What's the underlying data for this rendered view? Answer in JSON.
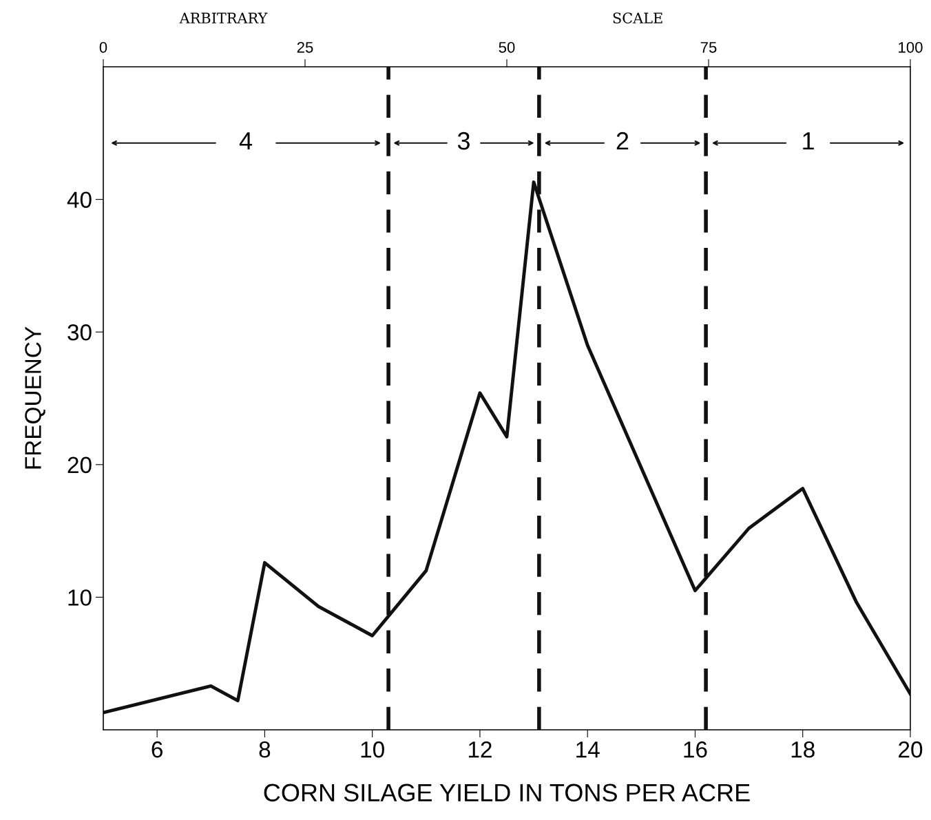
{
  "chart_data": {
    "type": "line",
    "xlabel": "CORN SILAGE YIELD IN TONS PER ACRE",
    "ylabel": "FREQUENCY",
    "x": [
      5,
      7,
      7.5,
      8,
      9,
      10,
      11,
      12,
      12.5,
      13,
      14,
      16,
      17,
      18,
      19,
      20
    ],
    "series": [
      {
        "color": "#111111",
        "values": [
          1.3,
          3.3,
          2.2,
          12.6,
          9.3,
          7.1,
          12.0,
          25.4,
          22.1,
          41.3,
          29,
          10.5,
          15.2,
          18.2,
          9.6,
          2.7
        ]
      }
    ],
    "xlim": [
      5,
      20
    ],
    "xticks": [
      6,
      8,
      10,
      12,
      14,
      16,
      18,
      20
    ],
    "ylim": [
      0,
      50
    ],
    "yticks": [
      10,
      20,
      30,
      40
    ],
    "x2lim": [
      0,
      100
    ],
    "x2ticks": [
      0,
      25,
      50,
      75,
      100
    ],
    "ref_lines": [
      {
        "axis": "x",
        "value": 10.3,
        "color": "#111111",
        "line_style": "dashed"
      },
      {
        "axis": "x",
        "value": 13.1,
        "color": "#111111",
        "line_style": "dashed"
      },
      {
        "axis": "x",
        "value": 16.2,
        "color": "#111111",
        "line_style": "dashed"
      }
    ],
    "annotations": [
      "ARBITRARY",
      "SCALE",
      "4",
      "3",
      "2",
      "1"
    ],
    "grid": false,
    "legend": false,
    "marker": "none",
    "line_style": "solid"
  }
}
